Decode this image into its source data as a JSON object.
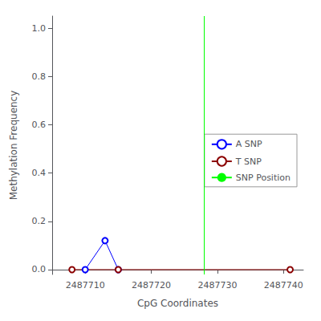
{
  "chart_data": {
    "type": "line",
    "xlabel": "CpG Coordinates",
    "ylabel": "Methylation Frequency",
    "series": [
      {
        "name": "A SNP",
        "type": "line",
        "color": "blue",
        "marker": "circle",
        "x": [
          2487710,
          2487713,
          2487715
        ],
        "values": [
          0.0,
          0.12,
          0.0
        ]
      },
      {
        "name": "T SNP",
        "type": "line",
        "color": "#8b0000",
        "marker": "circle",
        "x": [
          2487708,
          2487715,
          2487741
        ],
        "values": [
          0.0,
          0.0,
          0.0
        ]
      },
      {
        "name": "SNP Position",
        "type": "vline",
        "color": "lime",
        "x": [
          2487728
        ]
      }
    ],
    "xlim": [
      2487705,
      2487743
    ],
    "xticks": [
      2487710,
      2487720,
      2487730,
      2487740
    ],
    "ylim": [
      -0.02,
      1.05
    ],
    "yticks": [
      {
        "value": 0.0,
        "label": "0.0"
      },
      0.2,
      0.4,
      0.6,
      0.8,
      {
        "value": 1.0,
        "label": "1.0"
      }
    ],
    "grid": false,
    "legend": "right"
  }
}
